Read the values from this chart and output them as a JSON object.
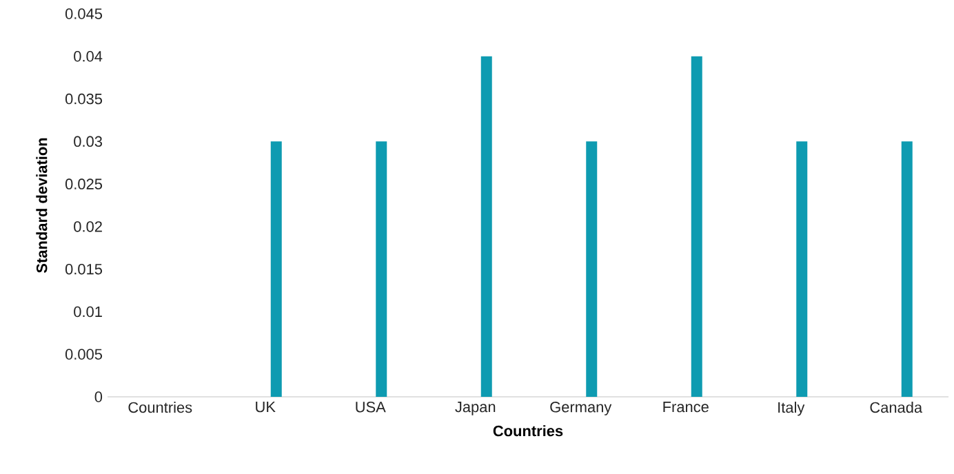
{
  "chart_data": {
    "type": "bar",
    "xlabel": "Countries",
    "ylabel": "Standard deviation",
    "categories": [
      "Countries",
      "UK",
      "USA",
      "Japan",
      "Germany",
      "France",
      "Italy",
      "Canada"
    ],
    "values": [
      null,
      0.03,
      0.03,
      0.04,
      0.03,
      0.04,
      0.03,
      0.03
    ],
    "color": "#0e9bb1",
    "ylim": [
      0,
      0.045
    ],
    "yticks": [
      0,
      0.005,
      0.01,
      0.015,
      0.02,
      0.025,
      0.03,
      0.035,
      0.04,
      0.045
    ],
    "grid": false
  }
}
